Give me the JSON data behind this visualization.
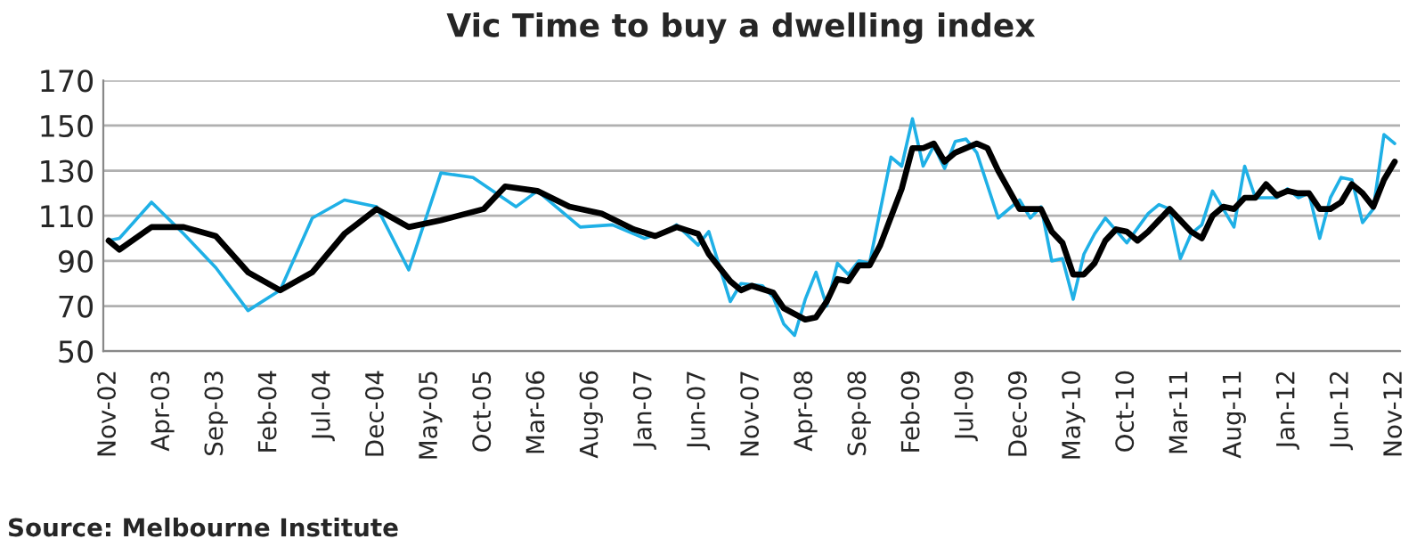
{
  "chart_data": {
    "type": "line",
    "title": "Vic Time to buy a dwelling index",
    "categories": [
      "Nov-02",
      null,
      null,
      null,
      null,
      "Apr-03",
      null,
      null,
      null,
      null,
      "Sep-03",
      null,
      null,
      null,
      null,
      "Feb-04",
      null,
      null,
      null,
      null,
      "Jul-04",
      null,
      null,
      null,
      null,
      "Dec-04",
      null,
      null,
      null,
      null,
      "May-05",
      null,
      null,
      null,
      null,
      "Oct-05",
      null,
      null,
      null,
      null,
      "Mar-06",
      null,
      null,
      null,
      null,
      "Aug-06",
      null,
      null,
      null,
      null,
      "Jan-07",
      null,
      null,
      null,
      null,
      "Jun-07",
      null,
      null,
      null,
      null,
      "Nov-07",
      null,
      null,
      null,
      null,
      "Apr-08",
      null,
      null,
      null,
      null,
      "Sep-08",
      null,
      null,
      null,
      null,
      "Feb-09",
      null,
      null,
      null,
      null,
      "Jul-09",
      null,
      null,
      null,
      null,
      "Dec-09",
      null,
      null,
      null,
      null,
      "May-10",
      null,
      null,
      null,
      null,
      "Oct-10",
      null,
      null,
      null,
      null,
      "Mar-11",
      null,
      null,
      null,
      null,
      "Aug-11",
      null,
      null,
      null,
      null,
      "Jan-12",
      null,
      null,
      null,
      null,
      "Jun-12",
      null,
      null,
      null,
      null,
      "Nov-12"
    ],
    "series": [
      {
        "color": "#1fb0e6",
        "values": [
          99,
          100,
          null,
          null,
          116,
          null,
          null,
          102,
          null,
          null,
          87,
          null,
          null,
          68,
          null,
          null,
          77,
          null,
          null,
          109,
          null,
          null,
          117,
          null,
          null,
          114,
          null,
          null,
          86,
          null,
          null,
          129,
          null,
          null,
          127,
          null,
          null,
          null,
          114,
          null,
          121,
          null,
          null,
          null,
          105,
          null,
          null,
          106,
          null,
          null,
          100,
          null,
          103,
          106,
          null,
          97,
          103,
          null,
          72,
          80,
          null,
          79,
          74,
          62,
          57,
          73,
          85,
          70,
          89,
          84,
          90,
          89,
          null,
          136,
          132,
          153,
          132,
          141,
          131,
          143,
          144,
          138,
          null,
          109,
          null,
          117,
          109,
          114,
          90,
          91,
          73,
          93,
          102,
          109,
          null,
          98,
          null,
          111,
          115,
          113,
          91,
          102,
          106,
          121,
          null,
          105,
          132,
          118,
          null,
          118,
          122,
          118,
          120,
          100,
          118,
          127,
          126,
          107,
          113,
          146,
          142
        ]
      },
      {
        "color": "#000000",
        "values": [
          99,
          95,
          null,
          null,
          105,
          null,
          null,
          105,
          null,
          null,
          101,
          null,
          null,
          85,
          null,
          null,
          77,
          null,
          null,
          85,
          null,
          null,
          102,
          null,
          null,
          113,
          null,
          null,
          105,
          null,
          null,
          108,
          null,
          null,
          null,
          113,
          null,
          123,
          null,
          null,
          121,
          null,
          null,
          114,
          null,
          null,
          111,
          null,
          null,
          104,
          null,
          101,
          null,
          105,
          null,
          102,
          93,
          null,
          81,
          77,
          79,
          null,
          76,
          69,
          null,
          64,
          65,
          72,
          82,
          81,
          88,
          88,
          97,
          null,
          122,
          140,
          140,
          142,
          134,
          138,
          null,
          142,
          140,
          130,
          null,
          113,
          null,
          113,
          103,
          98,
          84,
          84,
          89,
          99,
          104,
          103,
          99,
          103,
          null,
          113,
          null,
          103,
          100,
          110,
          114,
          113,
          118,
          118,
          124,
          119,
          121,
          120,
          120,
          113,
          113,
          116,
          124,
          120,
          114,
          126,
          134
        ]
      }
    ],
    "ylim": [
      50,
      170
    ],
    "yticks": [
      50,
      70,
      90,
      110,
      130,
      150,
      170
    ],
    "grid": "y",
    "legend": false,
    "annotations": [
      "Source: Melbourne Institute"
    ]
  }
}
